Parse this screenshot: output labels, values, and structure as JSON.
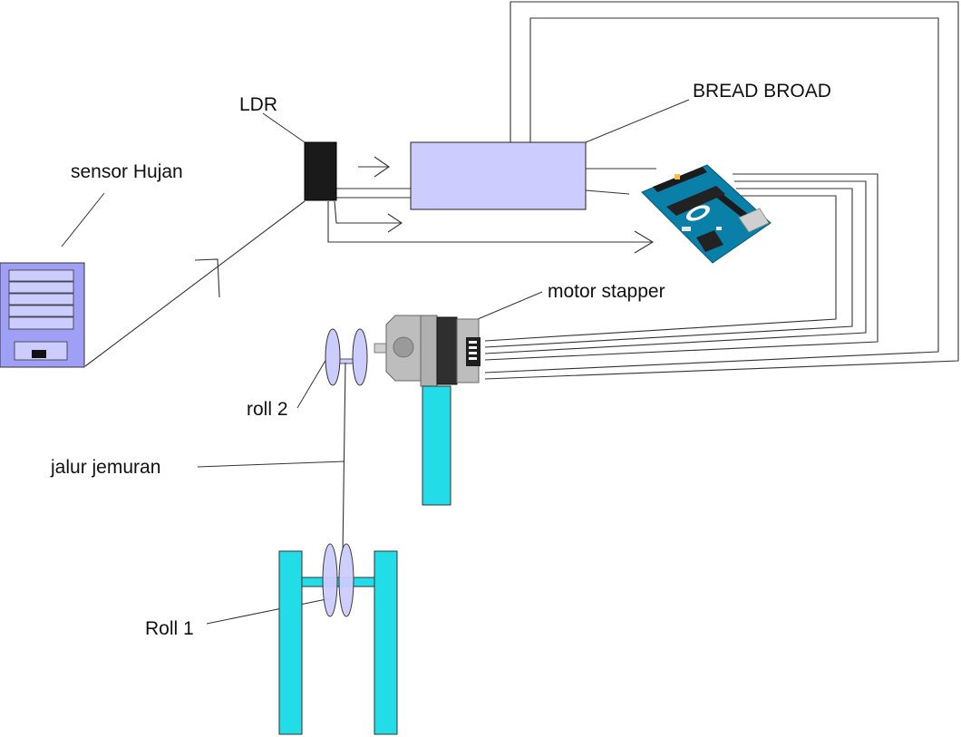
{
  "labels": {
    "ldr": "LDR",
    "bread_board": "BREAD BROAD",
    "sensor_hujan": "sensor Hujan",
    "motor_stepper": "motor stapper",
    "roll_2": "roll 2",
    "jalur_jemuran": "jalur jemuran",
    "roll_1": "Roll 1"
  },
  "colors": {
    "breadboard": "#ccccff",
    "sensor_body": "#9f9ff5",
    "ldr": "#1a1a1a",
    "roll": "#ccccff",
    "frame": "#22dde8",
    "arduino": "#0a7fa8",
    "motor_silver": "#b9b9b9",
    "motor_dark": "#2f2f2f"
  }
}
